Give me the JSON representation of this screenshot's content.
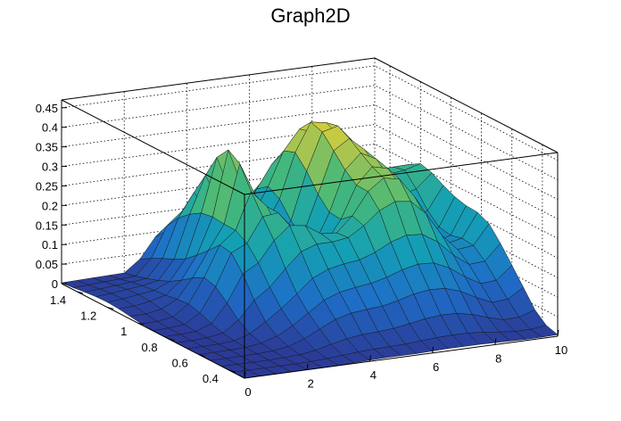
{
  "chart_data": {
    "type": "surface3d",
    "title": "Graph2D",
    "x_ticks": [
      "0",
      "2",
      "4",
      "6",
      "8",
      "10"
    ],
    "y_ticks": [
      "0.4",
      "0.6",
      "0.8",
      "1",
      "1.2",
      "1.4"
    ],
    "z_ticks": [
      "0",
      "0.05",
      "0.1",
      "0.15",
      "0.2",
      "0.25",
      "0.3",
      "0.35",
      "0.4",
      "0.45"
    ],
    "xlim": [
      0,
      10
    ],
    "ylim": [
      0.3,
      1.5
    ],
    "zlim": [
      0,
      0.47
    ],
    "grid": true,
    "colormap": "viridis-like (blue-green-yellow)",
    "x_grid": [
      0,
      0.5,
      1,
      1.5,
      2,
      2.5,
      3,
      3.5,
      4,
      4.5,
      5,
      5.5,
      6,
      6.5,
      7,
      7.5,
      8,
      8.5,
      9,
      9.5,
      10
    ],
    "y_grid": [
      0.3,
      0.375,
      0.45,
      0.525,
      0.6,
      0.675,
      0.75,
      0.825,
      0.9,
      0.975,
      1.05,
      1.125,
      1.2,
      1.275,
      1.35,
      1.425,
      1.5
    ],
    "z_values": [
      [
        0.0,
        0.0,
        0.0,
        0.0,
        0.0,
        0.0,
        0.0,
        0.0,
        0.001,
        0.003,
        0.007,
        0.011,
        0.013,
        0.012,
        0.009,
        0.005,
        0.002
      ],
      [
        0.0,
        0.0,
        0.0,
        0.0,
        0.0,
        0.0,
        0.0,
        0.001,
        0.002,
        0.004,
        0.008,
        0.013,
        0.016,
        0.015,
        0.011,
        0.006,
        0.003
      ],
      [
        0.0,
        0.0,
        0.0,
        0.0,
        0.001,
        0.001,
        0.002,
        0.003,
        0.006,
        0.01,
        0.015,
        0.02,
        0.022,
        0.02,
        0.015,
        0.009,
        0.004
      ],
      [
        0.0,
        0.0,
        0.0,
        0.001,
        0.002,
        0.004,
        0.009,
        0.018,
        0.03,
        0.038,
        0.035,
        0.03,
        0.027,
        0.024,
        0.018,
        0.011,
        0.005
      ],
      [
        0.0,
        0.0,
        0.001,
        0.003,
        0.008,
        0.017,
        0.036,
        0.065,
        0.092,
        0.1,
        0.084,
        0.063,
        0.045,
        0.032,
        0.022,
        0.013,
        0.006
      ],
      [
        0.0,
        0.001,
        0.003,
        0.009,
        0.02,
        0.042,
        0.082,
        0.134,
        0.173,
        0.178,
        0.149,
        0.122,
        0.097,
        0.081,
        0.068,
        0.053,
        0.036
      ],
      [
        0.001,
        0.003,
        0.009,
        0.023,
        0.042,
        0.07,
        0.11,
        0.157,
        0.192,
        0.21,
        0.211,
        0.214,
        0.209,
        0.191,
        0.166,
        0.131,
        0.088
      ],
      [
        0.002,
        0.006,
        0.019,
        0.043,
        0.069,
        0.103,
        0.152,
        0.209,
        0.255,
        0.304,
        0.36,
        0.38,
        0.346,
        0.285,
        0.226,
        0.165,
        0.103
      ],
      [
        0.003,
        0.009,
        0.028,
        0.062,
        0.096,
        0.137,
        0.19,
        0.242,
        0.259,
        0.26,
        0.274,
        0.269,
        0.238,
        0.2,
        0.162,
        0.116,
        0.071
      ],
      [
        0.004,
        0.011,
        0.033,
        0.073,
        0.111,
        0.155,
        0.204,
        0.236,
        0.211,
        0.181,
        0.166,
        0.152,
        0.139,
        0.127,
        0.108,
        0.082,
        0.05
      ],
      [
        0.004,
        0.012,
        0.035,
        0.077,
        0.118,
        0.163,
        0.204,
        0.21,
        0.163,
        0.131,
        0.123,
        0.131,
        0.152,
        0.164,
        0.151,
        0.121,
        0.083
      ],
      [
        0.004,
        0.013,
        0.038,
        0.08,
        0.123,
        0.168,
        0.21,
        0.207,
        0.165,
        0.145,
        0.152,
        0.178,
        0.218,
        0.235,
        0.213,
        0.168,
        0.115
      ],
      [
        0.005,
        0.016,
        0.045,
        0.089,
        0.133,
        0.182,
        0.235,
        0.245,
        0.221,
        0.224,
        0.255,
        0.299,
        0.332,
        0.321,
        0.273,
        0.209,
        0.139
      ],
      [
        0.006,
        0.019,
        0.052,
        0.1,
        0.147,
        0.203,
        0.268,
        0.302,
        0.303,
        0.327,
        0.361,
        0.394,
        0.404,
        0.371,
        0.307,
        0.23,
        0.151
      ],
      [
        0.006,
        0.02,
        0.056,
        0.106,
        0.156,
        0.215,
        0.286,
        0.331,
        0.345,
        0.365,
        0.387,
        0.404,
        0.397,
        0.357,
        0.291,
        0.217,
        0.142
      ],
      [
        0.006,
        0.02,
        0.055,
        0.104,
        0.154,
        0.212,
        0.281,
        0.323,
        0.335,
        0.344,
        0.352,
        0.358,
        0.347,
        0.31,
        0.254,
        0.189,
        0.124
      ],
      [
        0.005,
        0.017,
        0.047,
        0.091,
        0.136,
        0.187,
        0.243,
        0.271,
        0.274,
        0.278,
        0.286,
        0.301,
        0.307,
        0.284,
        0.236,
        0.177,
        0.117
      ],
      [
        0.004,
        0.012,
        0.034,
        0.07,
        0.108,
        0.148,
        0.183,
        0.193,
        0.186,
        0.189,
        0.208,
        0.241,
        0.27,
        0.26,
        0.218,
        0.164,
        0.108
      ],
      [
        0.003,
        0.008,
        0.023,
        0.052,
        0.085,
        0.119,
        0.142,
        0.142,
        0.129,
        0.132,
        0.16,
        0.205,
        0.244,
        0.24,
        0.202,
        0.152,
        0.101
      ],
      [
        0.003,
        0.008,
        0.024,
        0.055,
        0.088,
        0.122,
        0.147,
        0.15,
        0.143,
        0.149,
        0.176,
        0.216,
        0.249,
        0.242,
        0.203,
        0.153,
        0.101
      ],
      [
        0.004,
        0.013,
        0.038,
        0.08,
        0.121,
        0.162,
        0.197,
        0.211,
        0.213,
        0.221,
        0.235,
        0.252,
        0.26,
        0.243,
        0.201,
        0.152,
        0.1
      ]
    ]
  }
}
